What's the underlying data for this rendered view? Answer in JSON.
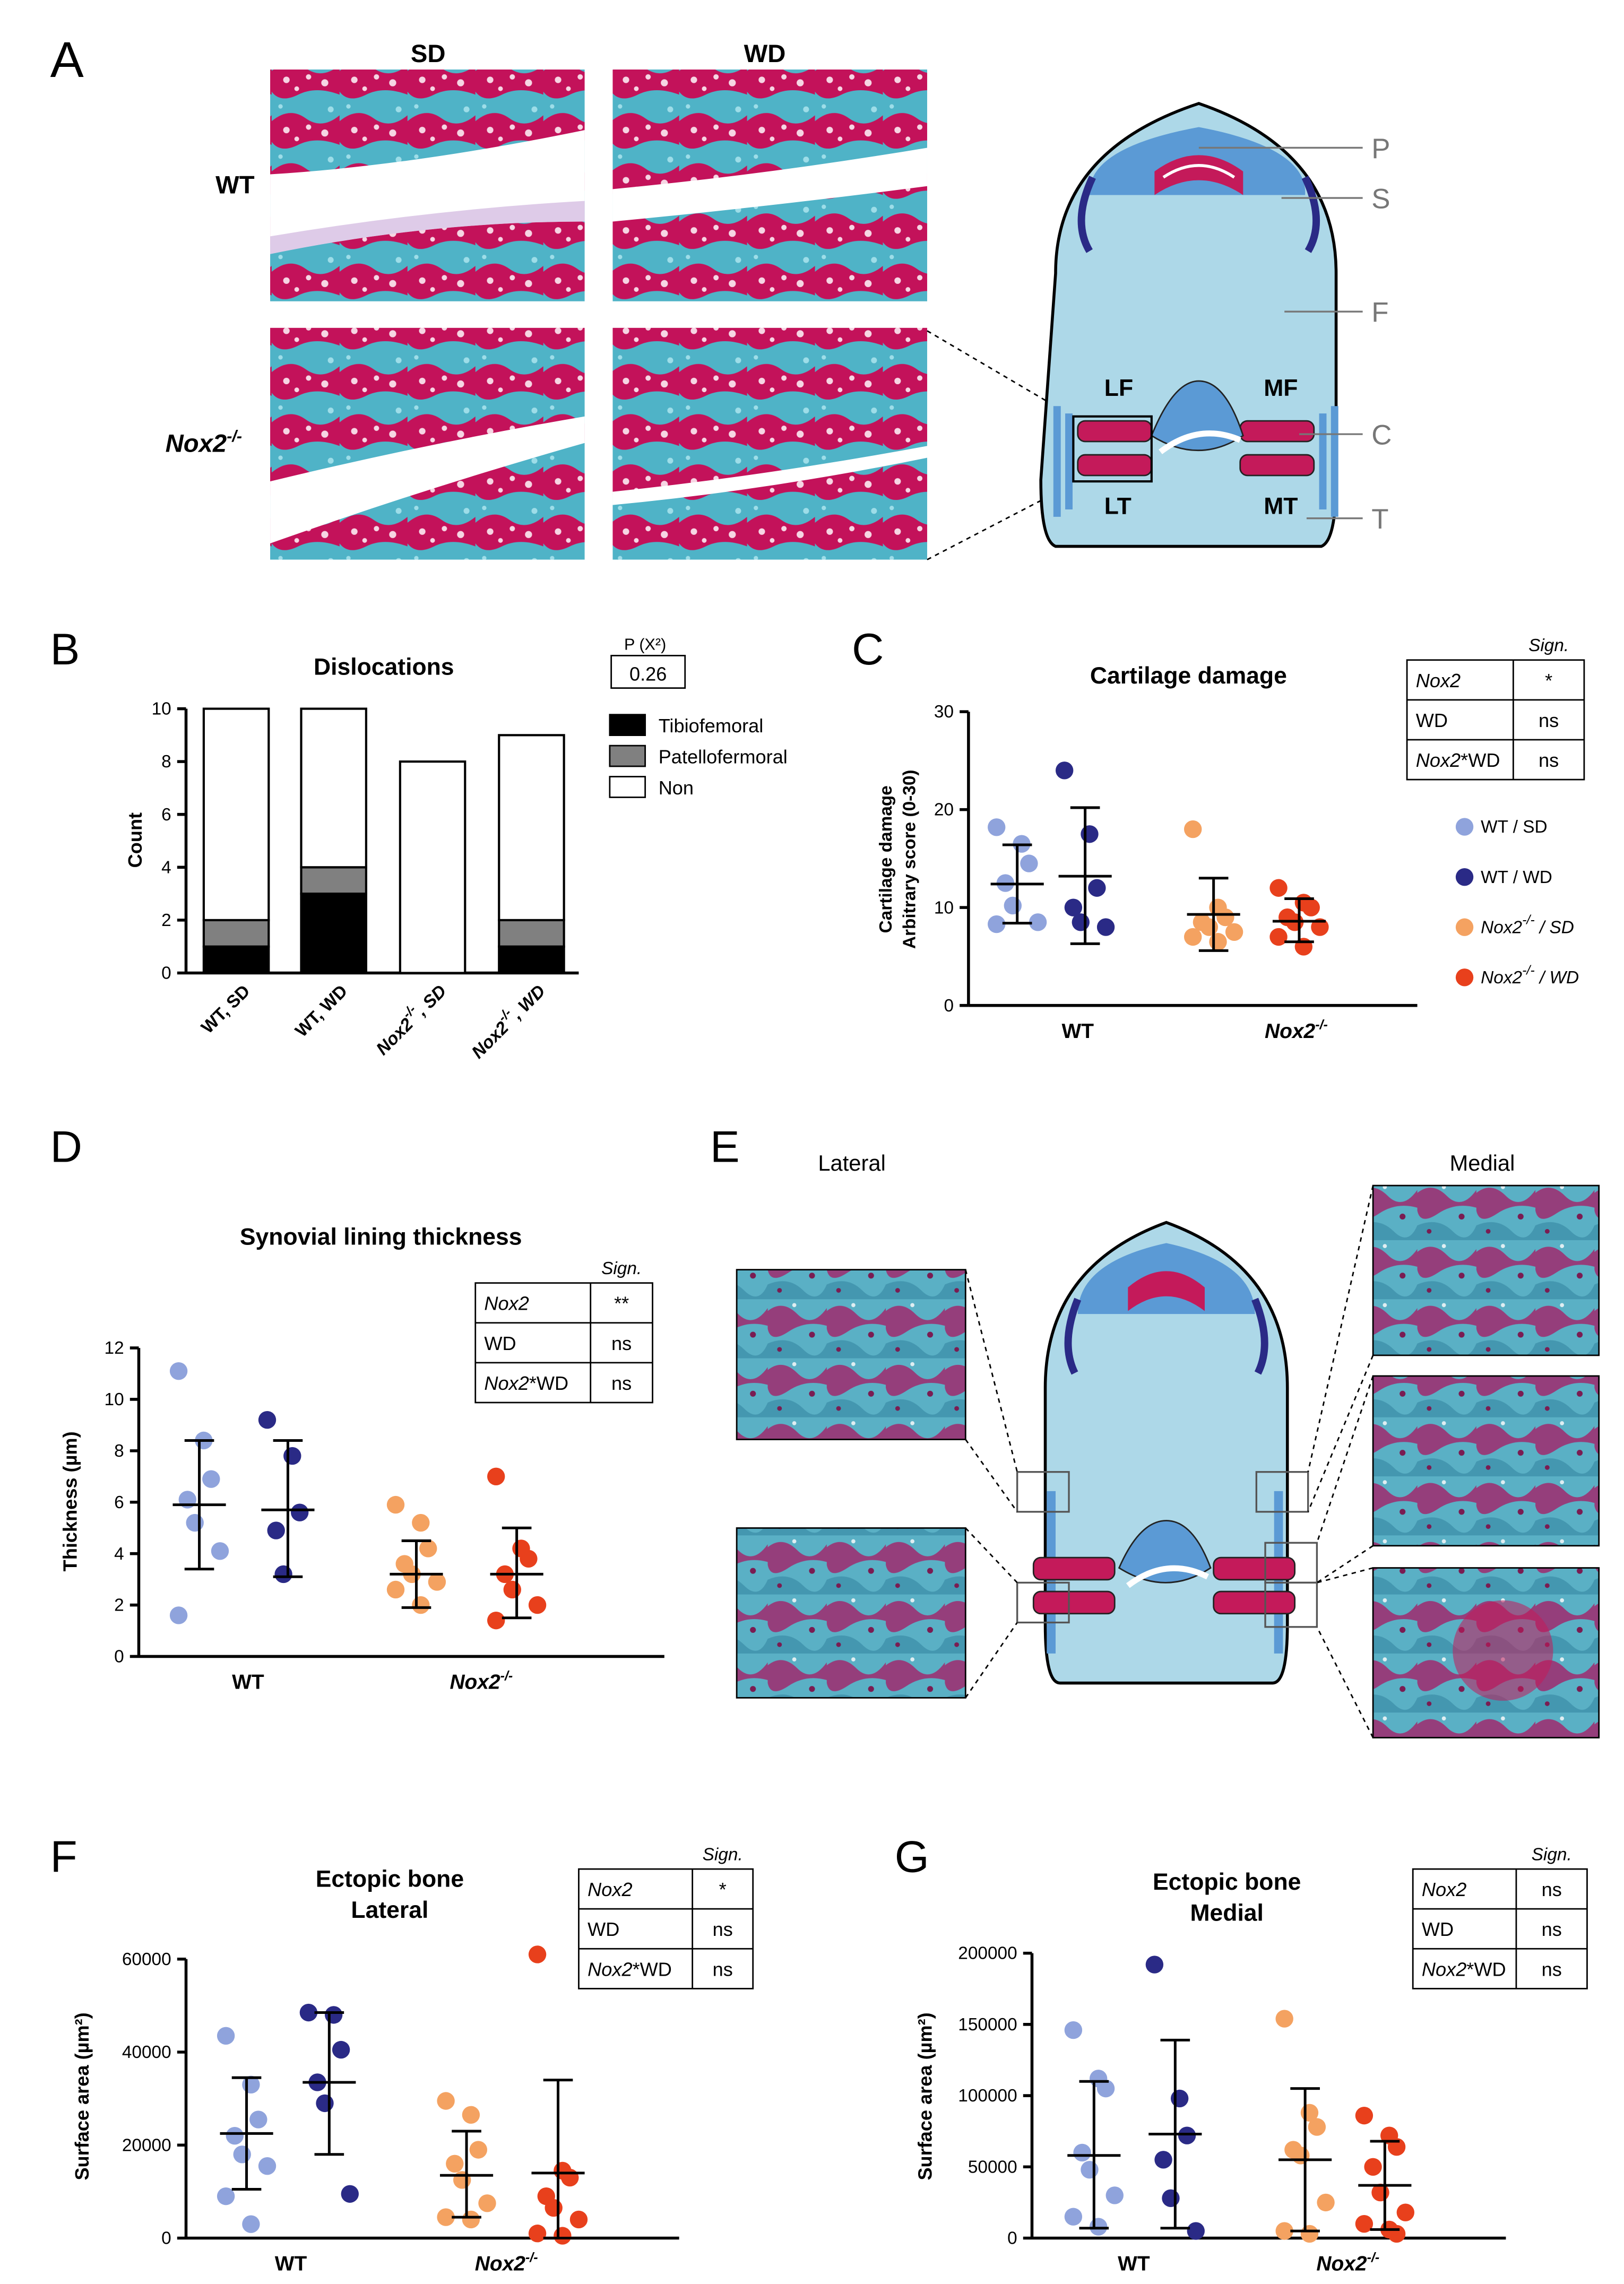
{
  "panel_letters": {
    "a": "A",
    "b": "B",
    "c": "C",
    "d": "D",
    "e": "E",
    "f": "F",
    "g": "G"
  },
  "panel_a": {
    "col_headers": [
      "SD",
      "WD"
    ],
    "row_labels": {
      "wt": "WT",
      "nox_base": "Nox2",
      "nox_sup": "-/-"
    },
    "diagram_labels": {
      "P": "P",
      "S": "S",
      "F": "F",
      "C": "C",
      "T": "T",
      "LF": "LF",
      "MF": "MF",
      "LT": "LT",
      "MT": "MT"
    }
  },
  "panel_e": {
    "lateral": "Lateral",
    "medial": "Medial"
  },
  "legend_groups": [
    {
      "base": "WT / SD",
      "sup": "",
      "tail": "",
      "color": "#8fa3dc"
    },
    {
      "base": "WT / WD",
      "sup": "",
      "tail": "",
      "color": "#2a2a86"
    },
    {
      "base": "Nox2",
      "sup": "-/-",
      "tail": " / SD",
      "color": "#f4a261"
    },
    {
      "base": "Nox2",
      "sup": "-/-",
      "tail": " / WD",
      "color": "#e8401c"
    }
  ],
  "chart_data": [
    {
      "id": "B",
      "type": "bar",
      "title": "Dislocations",
      "ylabel": "Count",
      "ylim": [
        0,
        10
      ],
      "yticks": [
        "0",
        "2",
        "4",
        "6",
        "8",
        "10"
      ],
      "categories": [
        {
          "base": "WT, SD",
          "sup": ""
        },
        {
          "base": "WT, WD",
          "sup": ""
        },
        {
          "base": "Nox2",
          "sup": "-/-",
          "tail": ", SD"
        },
        {
          "base": "Nox2",
          "sup": "-/-",
          "tail": ", WD"
        }
      ],
      "series": [
        {
          "name": "Tibiofemoral",
          "color": "#000000",
          "values": [
            1,
            3,
            0,
            1
          ]
        },
        {
          "name": "Patellofermoral",
          "color": "#808080",
          "values": [
            1,
            1,
            0,
            1
          ]
        },
        {
          "name": "Non",
          "color": "#ffffff",
          "values": [
            8,
            6,
            8,
            7
          ]
        }
      ],
      "p_header": "P (X²)",
      "p_value": "0.26"
    },
    {
      "id": "C",
      "type": "scatter",
      "title": "Cartilage damage",
      "ylabel_lines": [
        "Cartilage damage",
        "Arbitrary score (0-30)"
      ],
      "ylim": [
        0,
        30
      ],
      "yticks": [
        "0",
        "10",
        "20",
        "30"
      ],
      "group_labels": [
        {
          "base": "WT",
          "sup": ""
        },
        {
          "base": "Nox2",
          "sup": "-/-"
        }
      ],
      "groups": [
        {
          "values": [
            18.2,
            16.5,
            14.5,
            12.5,
            10.2,
            8.5,
            8.3
          ],
          "mean": 12.4,
          "sd_upper": 16.4,
          "sd_lower": 8.4
        },
        {
          "values": [
            24,
            17.5,
            12,
            10,
            8.5,
            8
          ],
          "mean": 13.2,
          "sd_upper": 20.2,
          "sd_lower": 6.3
        },
        {
          "values": [
            18,
            10,
            9,
            8.5,
            8,
            7.5,
            7,
            6.5
          ],
          "mean": 9.3,
          "sd_upper": 13,
          "sd_lower": 5.6
        },
        {
          "values": [
            12,
            10.5,
            10,
            9,
            8.5,
            8,
            7,
            6
          ],
          "mean": 8.6,
          "sd_upper": 10.9,
          "sd_lower": 6.5
        }
      ],
      "sign_header": "Sign.",
      "sign_table": [
        {
          "label": "Nox2",
          "italic": true,
          "tail": "",
          "value": "*"
        },
        {
          "label": "WD",
          "italic": false,
          "tail": "",
          "value": "ns"
        },
        {
          "label": "Nox2",
          "italic": true,
          "tail": "*WD",
          "value": "ns"
        }
      ]
    },
    {
      "id": "D",
      "type": "scatter",
      "title": "Synovial lining thickness",
      "ylabel": "Thickness (µm)",
      "ylim": [
        0,
        12
      ],
      "yticks": [
        "0",
        "2",
        "4",
        "6",
        "8",
        "10",
        "12"
      ],
      "group_labels": [
        {
          "base": "WT",
          "sup": ""
        },
        {
          "base": "Nox2",
          "sup": "-/-"
        }
      ],
      "groups": [
        {
          "values": [
            11.1,
            8.4,
            6.9,
            6.1,
            5.2,
            4.1,
            1.6
          ],
          "mean": 5.9,
          "sd_upper": 8.4,
          "sd_lower": 3.4
        },
        {
          "values": [
            9.2,
            7.8,
            5.6,
            4.9,
            3.2
          ],
          "mean": 5.7,
          "sd_upper": 8.4,
          "sd_lower": 3.1
        },
        {
          "values": [
            5.9,
            5.2,
            4.2,
            3.6,
            3.2,
            2.9,
            2.6,
            2.0
          ],
          "mean": 3.2,
          "sd_upper": 4.5,
          "sd_lower": 1.9
        },
        {
          "values": [
            7.0,
            4.2,
            3.8,
            3.2,
            2.6,
            2.0,
            1.4
          ],
          "mean": 3.2,
          "sd_upper": 5.0,
          "sd_lower": 1.5
        }
      ],
      "sign_header": "Sign.",
      "sign_table": [
        {
          "label": "Nox2",
          "italic": true,
          "tail": "",
          "value": "**"
        },
        {
          "label": "WD",
          "italic": false,
          "tail": "",
          "value": "ns"
        },
        {
          "label": "Nox2",
          "italic": true,
          "tail": "*WD",
          "value": "ns"
        }
      ]
    },
    {
      "id": "F",
      "type": "scatter",
      "title_lines": [
        "Ectopic bone",
        "Lateral"
      ],
      "ylabel": "Surface area (µm²)",
      "ylim": [
        0,
        60000
      ],
      "yticks": [
        "0",
        "20000",
        "40000",
        "60000"
      ],
      "group_labels": [
        {
          "base": "WT",
          "sup": ""
        },
        {
          "base": "Nox2",
          "sup": "-/-"
        }
      ],
      "groups": [
        {
          "values": [
            43500,
            33000,
            25500,
            22000,
            18000,
            15500,
            9000,
            3000
          ],
          "mean": 22500,
          "sd_upper": 34500,
          "sd_lower": 10500
        },
        {
          "values": [
            48500,
            48000,
            40500,
            33500,
            29000,
            9500
          ],
          "mean": 33500,
          "sd_upper": 48500,
          "sd_lower": 18000
        },
        {
          "values": [
            29500,
            26500,
            19000,
            16000,
            12500,
            7500,
            4500,
            4000
          ],
          "mean": 13500,
          "sd_upper": 23000,
          "sd_lower": 4500
        },
        {
          "values": [
            61000,
            14500,
            13000,
            9000,
            6500,
            4000,
            1000,
            500
          ],
          "mean": 14000,
          "sd_upper": 34000,
          "sd_lower": 0
        },
        {
          "values": [],
          "mean": 0,
          "sd_upper": 0,
          "sd_lower": 0
        }
      ],
      "sign_header": "Sign.",
      "sign_table": [
        {
          "label": "Nox2",
          "italic": true,
          "tail": "",
          "value": "*"
        },
        {
          "label": "WD",
          "italic": false,
          "tail": "",
          "value": "ns"
        },
        {
          "label": "Nox2",
          "italic": true,
          "tail": "*WD",
          "value": "ns"
        }
      ]
    },
    {
      "id": "G",
      "type": "scatter",
      "title_lines": [
        "Ectopic bone",
        "Medial"
      ],
      "ylabel": "Surface area (µm²)",
      "ylim": [
        0,
        200000
      ],
      "yticks": [
        "0",
        "50000",
        "100000",
        "150000",
        "200000"
      ],
      "group_labels": [
        {
          "base": "WT",
          "sup": ""
        },
        {
          "base": "Nox2",
          "sup": "-/-"
        }
      ],
      "groups": [
        {
          "values": [
            146000,
            112000,
            105000,
            60000,
            48000,
            30000,
            15000,
            8000
          ],
          "mean": 58000,
          "sd_upper": 110000,
          "sd_lower": 7000
        },
        {
          "values": [
            192000,
            98000,
            72000,
            55000,
            28000,
            5000
          ],
          "mean": 73000,
          "sd_upper": 139000,
          "sd_lower": 7000
        },
        {
          "values": [
            154000,
            88000,
            78000,
            62000,
            58000,
            25000,
            5000,
            3000
          ],
          "mean": 55000,
          "sd_upper": 105000,
          "sd_lower": 5000
        },
        {
          "values": [
            86000,
            72000,
            64000,
            50000,
            32000,
            18000,
            10000,
            6000,
            3000
          ],
          "mean": 37000,
          "sd_upper": 68000,
          "sd_lower": 6000
        }
      ],
      "sign_header": "Sign.",
      "sign_table": [
        {
          "label": "Nox2",
          "italic": true,
          "tail": "",
          "value": "ns"
        },
        {
          "label": "WD",
          "italic": false,
          "tail": "",
          "value": "ns"
        },
        {
          "label": "Nox2",
          "italic": true,
          "tail": "*WD",
          "value": "ns"
        }
      ]
    }
  ]
}
